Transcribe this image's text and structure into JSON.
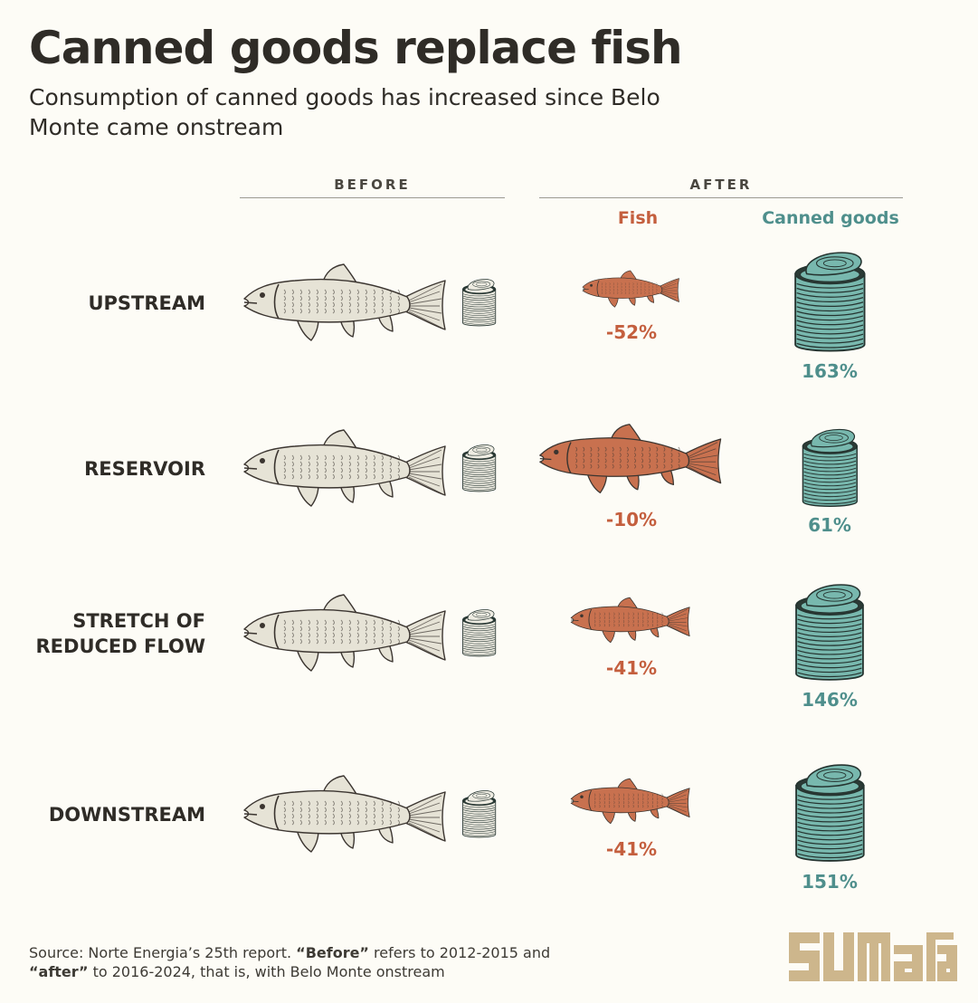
{
  "title": "Canned goods replace fish",
  "subtitle": "Consumption of canned goods has increased since Belo Monte came onstream",
  "headers": {
    "before": "BEFORE",
    "after": "AFTER",
    "fish": "Fish",
    "canned": "Canned goods"
  },
  "colors": {
    "fish_after": "#c8714f",
    "fish_before": "#e6e3d6",
    "can_after": "#78b8ae",
    "can_before": "#eeece2",
    "fish_text": "#c45f3e",
    "can_text": "#4f8f8c",
    "logo": "#cdb68c"
  },
  "source": {
    "prefix": "Source: Norte Energia’s 25th report. ",
    "before_word": "“Before”",
    "mid": " refers to 2012-2015 and ",
    "after_word": "“after”",
    "suffix": " to 2016-2024, that is, with Belo Monte onstream"
  },
  "logo": {
    "text": "SUMAÚMA",
    "icon": "sumauma-logo"
  },
  "chart_data": {
    "type": "table",
    "columns": [
      "Fish",
      "Canned goods"
    ],
    "unit": "% change after vs before",
    "rows": [
      {
        "region": "UPSTREAM",
        "fish_change": -52,
        "canned_change": 163,
        "fish_label": "-52%",
        "canned_label": "163%"
      },
      {
        "region": "RESERVOIR",
        "fish_change": -10,
        "canned_change": 61,
        "fish_label": "-10%",
        "canned_label": "61%"
      },
      {
        "region": "STRETCH OF REDUCED FLOW",
        "fish_change": -41,
        "canned_change": 146,
        "fish_label": "-41%",
        "canned_label": "146%"
      },
      {
        "region": "DOWNSTREAM",
        "fish_change": -41,
        "canned_change": 151,
        "fish_label": "-41%",
        "canned_label": "151%"
      }
    ]
  }
}
